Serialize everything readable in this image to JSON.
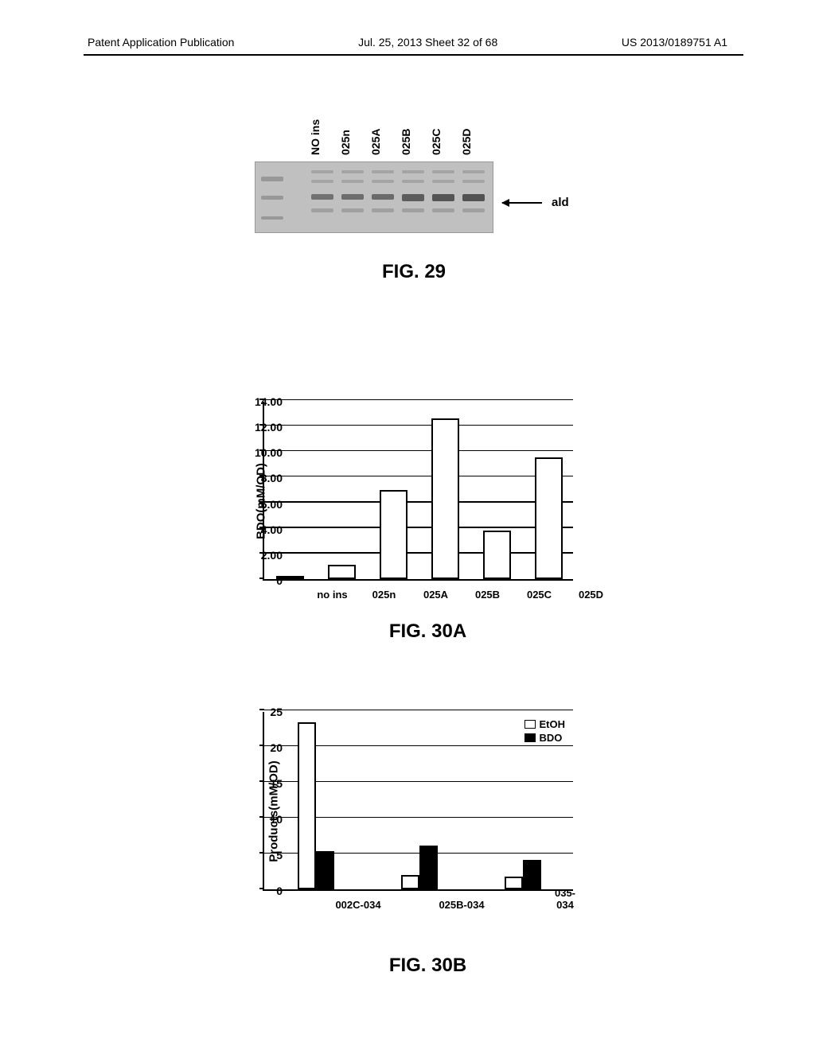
{
  "header": {
    "left": "Patent Application Publication",
    "center": "Jul. 25, 2013  Sheet 32 of 68",
    "right": "US 2013/0189751 A1"
  },
  "fig29": {
    "title": "FIG. 29",
    "lanes": [
      "NO ins",
      "025n",
      "025A",
      "025B",
      "025C",
      "025D"
    ],
    "arrow_label": "ald",
    "gel_bg": "#c5c5c5",
    "band_color": "#6b6b6b",
    "band_intensities": [
      0.3,
      0.45,
      0.5,
      0.55,
      0.75,
      0.85,
      0.9
    ]
  },
  "fig30a": {
    "title": "FIG. 30A",
    "ylabel": "BDO(mM/OD)",
    "ylim": [
      0,
      14
    ],
    "ytick_step": 2,
    "yticks": [
      "0",
      "2.00",
      "4.00",
      "6.00",
      "8.00",
      "10.00",
      "12.00",
      "14.00"
    ],
    "categories": [
      "no ins",
      "025n",
      "025A",
      "025B",
      "025C",
      "025D"
    ],
    "values": [
      0.1,
      1.1,
      7.0,
      12.6,
      3.8,
      9.5
    ],
    "bar_color": "#ffffff",
    "border_color": "#000000",
    "bar_width": 0.55
  },
  "fig30b": {
    "title": "FIG. 30B",
    "ylabel": "Products(mM/OD)",
    "ylim": [
      0,
      25
    ],
    "ytick_step": 5,
    "yticks": [
      "0",
      "5",
      "10",
      "15",
      "20",
      "25"
    ],
    "categories": [
      "002C-034",
      "025B-034",
      "035-034"
    ],
    "series": [
      {
        "name": "EtOH",
        "color": "#ffffff",
        "values": [
          23.3,
          2.0,
          1.8
        ]
      },
      {
        "name": "BDO",
        "color": "#000000",
        "values": [
          5.3,
          6.1,
          4.1
        ]
      }
    ],
    "bar_width": 0.35,
    "border_color": "#000000"
  }
}
